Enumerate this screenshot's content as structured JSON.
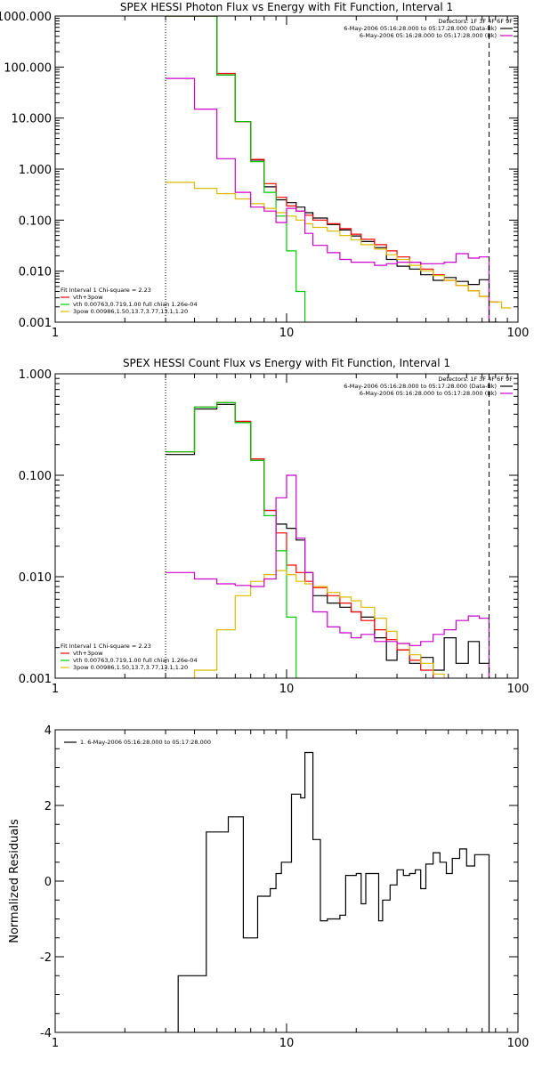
{
  "chart_data": [
    {
      "type": "line",
      "title": "SPEX HESSI Photon Flux vs Energy with Fit Function, Interval 1",
      "xlabel": "",
      "ylabel": "",
      "x_scale": "log",
      "y_scale": "log",
      "xlim": [
        1,
        100
      ],
      "ylim": [
        0.001,
        1000
      ],
      "x_ticks": [
        "1",
        "10",
        "100"
      ],
      "y_ticks": [
        "0.001",
        "0.010",
        "0.100",
        "1.000",
        "10.000",
        "100.000",
        "1000.000"
      ],
      "vlines": [
        {
          "x": 3,
          "style": "dotted"
        },
        {
          "x": 75,
          "style": "dashed"
        }
      ],
      "legend_top": {
        "header": "Detectors: 1F 3F 4F 6F 9F",
        "entries": [
          {
            "text": "6-May-2006 05:16:28.000 to 05:17:28.000 (Data-Bk)",
            "color": "#000000"
          },
          {
            "text": "6-May-2006 05:16:28.000 to 05:17:28.000 (Bk)",
            "color": "#cc00cc"
          }
        ]
      },
      "legend_bottom": {
        "header": "Fit Interval 1   Chi-square = 2.23",
        "entries": [
          {
            "text": "vth+3pow",
            "color": "#ff0000"
          },
          {
            "text": "vth 0.00763,0.719,1.00  full chian 1.26e-04",
            "color": "#00cc00"
          },
          {
            "text": "3pow 0.00986,1.50,13.7,3.77,13.1,1.20",
            "color": "#ddbb00"
          }
        ]
      },
      "series": [
        {
          "color": "#000000",
          "x": [
            3,
            4,
            5,
            6,
            7,
            8,
            9,
            10,
            11,
            12,
            13,
            15,
            17,
            19,
            21,
            24,
            27,
            30,
            34,
            38,
            43,
            48,
            54,
            61,
            68,
            75
          ],
          "y": [
            1000,
            1000,
            70,
            8.5,
            1.5,
            0.45,
            0.25,
            0.22,
            0.18,
            0.14,
            0.11,
            0.082,
            0.064,
            0.049,
            0.038,
            0.029,
            0.017,
            0.0125,
            0.011,
            0.0085,
            0.0066,
            0.0075,
            0.0063,
            0.0055,
            0.0068,
            0.001
          ]
        },
        {
          "color": "#ff0000",
          "x": [
            3,
            4,
            5,
            6,
            7,
            8,
            9,
            10,
            11,
            12,
            13,
            15,
            17,
            19,
            21,
            24,
            27,
            30,
            34,
            38,
            43,
            48,
            54,
            61,
            68,
            75
          ],
          "y": [
            1000,
            1000,
            75,
            8.5,
            1.55,
            0.52,
            0.28,
            0.19,
            0.15,
            0.125,
            0.1,
            0.085,
            0.068,
            0.053,
            0.042,
            0.033,
            0.025,
            0.019,
            0.015,
            0.011,
            0.0085,
            0.0066,
            0.0052,
            0.0041,
            0.0032,
            0.0025
          ]
        },
        {
          "color": "#00cc00",
          "x": [
            3,
            4,
            5,
            6,
            7,
            8,
            9,
            10,
            11,
            12,
            13
          ],
          "y": [
            1000,
            1000,
            70,
            8.5,
            1.4,
            0.35,
            0.12,
            0.025,
            0.004,
            0.0009,
            0.0009
          ]
        },
        {
          "color": "#ddbb00",
          "x": [
            3,
            4,
            5,
            6,
            7,
            8,
            9,
            10,
            11,
            12,
            13,
            15,
            17,
            19,
            21,
            24,
            27,
            30,
            34,
            38,
            43,
            48,
            54,
            61,
            68,
            75,
            85
          ],
          "y": [
            0.55,
            0.42,
            0.33,
            0.26,
            0.21,
            0.17,
            0.14,
            0.12,
            0.1,
            0.085,
            0.072,
            0.061,
            0.05,
            0.041,
            0.033,
            0.027,
            0.021,
            0.017,
            0.013,
            0.0102,
            0.0082,
            0.0066,
            0.0052,
            0.0041,
            0.0032,
            0.0025,
            0.0019
          ]
        },
        {
          "color": "#cc00cc",
          "x": [
            3,
            4,
            5,
            6,
            7,
            8,
            9,
            10,
            11,
            12,
            13,
            15,
            17,
            19,
            21,
            24,
            27,
            30,
            34,
            38,
            43,
            48,
            54,
            61,
            68,
            75
          ],
          "y": [
            60,
            15,
            1.6,
            0.35,
            0.18,
            0.15,
            0.09,
            0.17,
            0.15,
            0.055,
            0.032,
            0.023,
            0.017,
            0.015,
            0.015,
            0.013,
            0.014,
            0.015,
            0.015,
            0.014,
            0.014,
            0.015,
            0.022,
            0.018,
            0.019,
            0.0009
          ]
        }
      ]
    },
    {
      "type": "line",
      "title": "SPEX HESSI Count Flux vs Energy with Fit Function, Interval 1",
      "xlabel": "",
      "ylabel": "",
      "x_scale": "log",
      "y_scale": "log",
      "xlim": [
        1,
        100
      ],
      "ylim": [
        0.001,
        1
      ],
      "x_ticks": [
        "1",
        "10",
        "100"
      ],
      "y_ticks": [
        "0.001",
        "0.010",
        "0.100",
        "1.000"
      ],
      "vlines": [
        {
          "x": 3,
          "style": "dotted"
        },
        {
          "x": 75,
          "style": "dashed"
        }
      ],
      "legend_top": {
        "header": "Detectors: 1F 3F 4F 6F 9F",
        "entries": [
          {
            "text": "6-May-2006 05:16:28.000 to 05:17:28.000 (Data-Bk)",
            "color": "#000000"
          },
          {
            "text": "6-May-2006 05:16:28.000 to 05:17:28.000 (Bk)",
            "color": "#cc00cc"
          }
        ]
      },
      "legend_bottom": {
        "header": "Fit Interval 1   Chi-square = 2.23",
        "entries": [
          {
            "text": "vth+3pow",
            "color": "#ff0000"
          },
          {
            "text": "vth 0.00763,0.719,1.00  full chian 1.26e-04",
            "color": "#00cc00"
          },
          {
            "text": "3pow 0.00986,1.50,13.7,3.77,13.1,1.20",
            "color": "#ddbb00"
          }
        ]
      },
      "series": [
        {
          "color": "#000000",
          "x": [
            3,
            4,
            5,
            6,
            7,
            8,
            9,
            10,
            11,
            12,
            13,
            15,
            17,
            19,
            21,
            24,
            27,
            30,
            34,
            38,
            43,
            48,
            54,
            61,
            68,
            75
          ],
          "y": [
            0.16,
            0.45,
            0.5,
            0.33,
            0.14,
            0.045,
            0.033,
            0.03,
            0.023,
            0.011,
            0.0065,
            0.0055,
            0.005,
            0.0045,
            0.004,
            0.0025,
            0.0015,
            0.0019,
            0.0014,
            0.0016,
            0.0012,
            0.0025,
            0.0014,
            0.0023,
            0.0014,
            0.0009
          ]
        },
        {
          "color": "#ff0000",
          "x": [
            3,
            4,
            5,
            6,
            7,
            8,
            9,
            10,
            11,
            12,
            13,
            15,
            17,
            19,
            21,
            24,
            27,
            30,
            34,
            38,
            43,
            48,
            54,
            61,
            68,
            75
          ],
          "y": [
            0.17,
            0.47,
            0.52,
            0.34,
            0.145,
            0.045,
            0.027,
            0.013,
            0.011,
            0.009,
            0.0078,
            0.0065,
            0.0055,
            0.0045,
            0.0037,
            0.003,
            0.0024,
            0.0019,
            0.0015,
            0.0012,
            0.00095,
            0.0008,
            0.0008,
            0.0008,
            0.0008,
            0.0008
          ]
        },
        {
          "color": "#00cc00",
          "x": [
            3,
            4,
            5,
            6,
            7,
            8,
            9,
            10,
            11,
            12,
            13
          ],
          "y": [
            0.17,
            0.47,
            0.52,
            0.33,
            0.14,
            0.04,
            0.018,
            0.004,
            0.0009,
            0.0009,
            0.0009
          ]
        },
        {
          "color": "#ddbb00",
          "x": [
            3,
            4,
            5,
            6,
            7,
            8,
            9,
            10,
            11,
            12,
            13,
            15,
            17,
            19,
            21,
            24,
            27,
            30,
            34,
            38,
            43,
            48,
            54,
            61,
            68,
            75
          ],
          "y": [
            0.0009,
            0.0012,
            0.003,
            0.0065,
            0.009,
            0.0105,
            0.0115,
            0.0105,
            0.009,
            0.0085,
            0.008,
            0.007,
            0.0063,
            0.0058,
            0.005,
            0.0039,
            0.0029,
            0.0022,
            0.0017,
            0.0014,
            0.0011,
            0.0009,
            0.0009,
            0.0009,
            0.0009,
            0.0009
          ]
        },
        {
          "color": "#cc00cc",
          "x": [
            3,
            4,
            5,
            6,
            7,
            8,
            9,
            10,
            11,
            12,
            13,
            15,
            17,
            19,
            21,
            24,
            27,
            30,
            34,
            38,
            43,
            48,
            54,
            61,
            68,
            75
          ],
          "y": [
            0.011,
            0.0095,
            0.0085,
            0.0082,
            0.008,
            0.0095,
            0.06,
            0.1,
            0.024,
            0.011,
            0.0045,
            0.0032,
            0.0028,
            0.0025,
            0.0027,
            0.0023,
            0.0023,
            0.0022,
            0.0021,
            0.0023,
            0.0027,
            0.003,
            0.0037,
            0.0041,
            0.0039,
            0.0009
          ]
        }
      ]
    },
    {
      "type": "line",
      "title": "",
      "xlabel": "",
      "ylabel": "Normalized Residuals",
      "x_scale": "log",
      "y_scale": "linear",
      "xlim": [
        1,
        100
      ],
      "ylim": [
        -4,
        4
      ],
      "x_ticks": [
        "1",
        "10",
        "100"
      ],
      "y_ticks": [
        "-4",
        "-2",
        "0",
        "2",
        "4"
      ],
      "legend_top": {
        "header": "",
        "entries": [
          {
            "text": "1.  6-May-2006 05:16:28.000 to 05:17:28.000",
            "color": "#000000"
          }
        ]
      },
      "series": [
        {
          "color": "#000000",
          "x": [
            3,
            3.4,
            4,
            4.5,
            5,
            5.6,
            6,
            6.5,
            7,
            7.5,
            8,
            8.5,
            9,
            9.5,
            10,
            10.5,
            11,
            11.5,
            12,
            12.5,
            13,
            14,
            15,
            16,
            17,
            18,
            19,
            20,
            21,
            22,
            24,
            25,
            26,
            28,
            30,
            32,
            34,
            36,
            38,
            40,
            43,
            46,
            49,
            52,
            56,
            60,
            65,
            70,
            75
          ],
          "y": [
            -4.2,
            -2.5,
            -2.5,
            1.3,
            1.3,
            1.7,
            1.7,
            -1.5,
            -1.5,
            -0.4,
            -0.4,
            -0.2,
            0.2,
            0.5,
            0.5,
            2.3,
            2.3,
            2.2,
            3.4,
            3.4,
            1.1,
            -1.05,
            -1.0,
            -1.0,
            -0.9,
            0.15,
            0.15,
            0.2,
            -0.6,
            0.2,
            0.2,
            -1.05,
            -0.5,
            -0.1,
            0.3,
            0.15,
            0.2,
            0.3,
            -0.2,
            0.45,
            0.75,
            0.5,
            0.2,
            0.6,
            0.85,
            0.4,
            0.7,
            0.7,
            -4.2
          ]
        }
      ]
    }
  ]
}
